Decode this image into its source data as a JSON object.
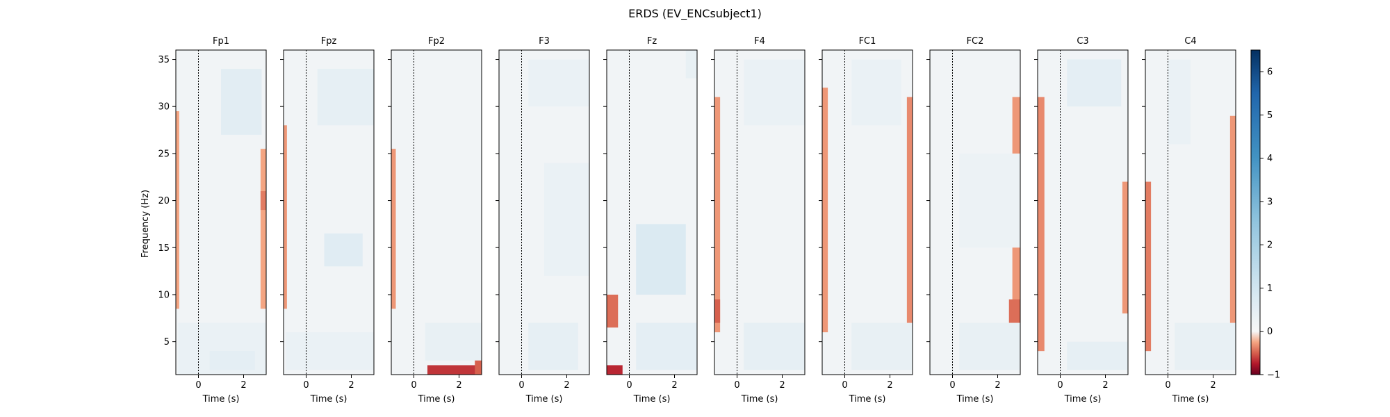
{
  "figure": {
    "title": "ERDS (EV_ENCsubject1)"
  },
  "chart_data": {
    "type": "heatmap",
    "title": "ERDS (EV_ENCsubject1)",
    "ylabel": "Frequency (Hz)",
    "xlabel": "Time (s)",
    "xlim": [
      -1,
      3
    ],
    "ylim": [
      1.5,
      36
    ],
    "xticks": [
      0,
      2
    ],
    "yticks": [
      5,
      10,
      15,
      20,
      25,
      30,
      35
    ],
    "event_marker_time": 0,
    "colorbar": {
      "vmin": -1,
      "vmax": 6.5,
      "ticks": [
        -1,
        0,
        1,
        2,
        3,
        4,
        5,
        6
      ],
      "colormap": "RdBu",
      "colors": {
        "low": "#67001f",
        "mid": "#f7f7f7",
        "high": "#053061"
      }
    },
    "panels": [
      {
        "channel": "Fp1",
        "blocks": [
          {
            "t": [
              -1.0,
              -0.85
            ],
            "f": [
              8.5,
              29.5
            ],
            "value": -0.25
          },
          {
            "t": [
              2.75,
              3.0
            ],
            "f": [
              8.5,
              25.5
            ],
            "value": -0.25
          },
          {
            "t": [
              2.75,
              3.0
            ],
            "f": [
              19.0,
              21.0
            ],
            "value": -0.4
          },
          {
            "t": [
              1.0,
              2.8
            ],
            "f": [
              27.0,
              34.0
            ],
            "value": 0.55
          },
          {
            "t": [
              -0.9,
              3.0
            ],
            "f": [
              1.5,
              7.0
            ],
            "value": 0.35
          },
          {
            "t": [
              0.5,
              2.5
            ],
            "f": [
              2.0,
              4.0
            ],
            "value": 0.5
          }
        ]
      },
      {
        "channel": "Fpz",
        "blocks": [
          {
            "t": [
              -1.0,
              -0.85
            ],
            "f": [
              8.5,
              28.0
            ],
            "value": -0.3
          },
          {
            "t": [
              0.8,
              2.5
            ],
            "f": [
              13.0,
              16.5
            ],
            "value": 0.6
          },
          {
            "t": [
              0.5,
              3.0
            ],
            "f": [
              28.0,
              34.0
            ],
            "value": 0.45
          },
          {
            "t": [
              -0.9,
              3.0
            ],
            "f": [
              2.0,
              6.0
            ],
            "value": 0.35
          }
        ]
      },
      {
        "channel": "Fp2",
        "blocks": [
          {
            "t": [
              -1.0,
              -0.8
            ],
            "f": [
              8.5,
              25.5
            ],
            "value": -0.3
          },
          {
            "t": [
              0.6,
              3.0
            ],
            "f": [
              1.5,
              2.5
            ],
            "value": -0.65
          },
          {
            "t": [
              2.7,
              3.0
            ],
            "f": [
              1.5,
              4.0
            ],
            "value": -0.5
          },
          {
            "t": [
              0.5,
              3.0
            ],
            "f": [
              3.0,
              7.0
            ],
            "value": 0.4
          }
        ]
      },
      {
        "channel": "F3",
        "blocks": [
          {
            "t": [
              0.3,
              2.5
            ],
            "f": [
              2.0,
              7.0
            ],
            "value": 0.45
          },
          {
            "t": [
              1.0,
              3.0
            ],
            "f": [
              12.0,
              24.0
            ],
            "value": 0.35
          },
          {
            "t": [
              0.3,
              3.0
            ],
            "f": [
              30.0,
              35.0
            ],
            "value": 0.35
          }
        ]
      },
      {
        "channel": "Fz",
        "blocks": [
          {
            "t": [
              -1.0,
              -0.5
            ],
            "f": [
              6.5,
              10.0
            ],
            "value": -0.45
          },
          {
            "t": [
              -1.0,
              -0.3
            ],
            "f": [
              1.5,
              2.5
            ],
            "value": -0.7
          },
          {
            "t": [
              0.3,
              2.5
            ],
            "f": [
              10.0,
              17.5
            ],
            "value": 0.75
          },
          {
            "t": [
              0.3,
              3.0
            ],
            "f": [
              2.0,
              7.0
            ],
            "value": 0.5
          },
          {
            "t": [
              2.5,
              3.0
            ],
            "f": [
              33.0,
              36.0
            ],
            "value": 0.4
          }
        ]
      },
      {
        "channel": "F4",
        "blocks": [
          {
            "t": [
              -1.0,
              -0.75
            ],
            "f": [
              6.0,
              31.0
            ],
            "value": -0.3
          },
          {
            "t": [
              -1.0,
              -0.75
            ],
            "f": [
              7.0,
              9.5
            ],
            "value": -0.5
          },
          {
            "t": [
              0.3,
              3.0
            ],
            "f": [
              2.0,
              7.0
            ],
            "value": 0.45
          },
          {
            "t": [
              0.3,
              3.0
            ],
            "f": [
              28.0,
              35.0
            ],
            "value": 0.35
          }
        ]
      },
      {
        "channel": "FC1",
        "blocks": [
          {
            "t": [
              -1.0,
              -0.75
            ],
            "f": [
              6.0,
              32.0
            ],
            "value": -0.3
          },
          {
            "t": [
              2.75,
              3.0
            ],
            "f": [
              6.5,
              31.0
            ],
            "value": -0.35
          },
          {
            "t": [
              0.3,
              3.0
            ],
            "f": [
              2.0,
              7.0
            ],
            "value": 0.4
          },
          {
            "t": [
              0.3,
              2.5
            ],
            "f": [
              28.0,
              35.0
            ],
            "value": 0.35
          }
        ]
      },
      {
        "channel": "FC2",
        "blocks": [
          {
            "t": [
              2.65,
              3.0
            ],
            "f": [
              7.0,
              31.0
            ],
            "value": -0.3
          },
          {
            "t": [
              2.5,
              3.0
            ],
            "f": [
              7.0,
              9.5
            ],
            "value": -0.45
          },
          {
            "t": [
              0.3,
              3.0
            ],
            "f": [
              2.0,
              7.0
            ],
            "value": 0.4
          },
          {
            "t": [
              0.3,
              3.0
            ],
            "f": [
              15.0,
              25.0
            ],
            "value": 0.3
          }
        ]
      },
      {
        "channel": "C3",
        "blocks": [
          {
            "t": [
              -1.0,
              -0.7
            ],
            "f": [
              4.0,
              31.0
            ],
            "value": -0.35
          },
          {
            "t": [
              2.75,
              3.0
            ],
            "f": [
              8.0,
              22.0
            ],
            "value": -0.3
          },
          {
            "t": [
              0.3,
              3.0
            ],
            "f": [
              2.0,
              5.0
            ],
            "value": 0.45
          },
          {
            "t": [
              0.3,
              2.7
            ],
            "f": [
              30.0,
              35.0
            ],
            "value": 0.5
          }
        ]
      },
      {
        "channel": "C4",
        "blocks": [
          {
            "t": [
              -1.0,
              -0.75
            ],
            "f": [
              4.0,
              22.0
            ],
            "value": -0.4
          },
          {
            "t": [
              2.75,
              3.0
            ],
            "f": [
              6.0,
              29.0
            ],
            "value": -0.3
          },
          {
            "t": [
              0.3,
              3.0
            ],
            "f": [
              2.0,
              7.0
            ],
            "value": 0.4
          },
          {
            "t": [
              0.0,
              1.0
            ],
            "f": [
              26.0,
              35.0
            ],
            "value": 0.35
          }
        ]
      }
    ]
  }
}
